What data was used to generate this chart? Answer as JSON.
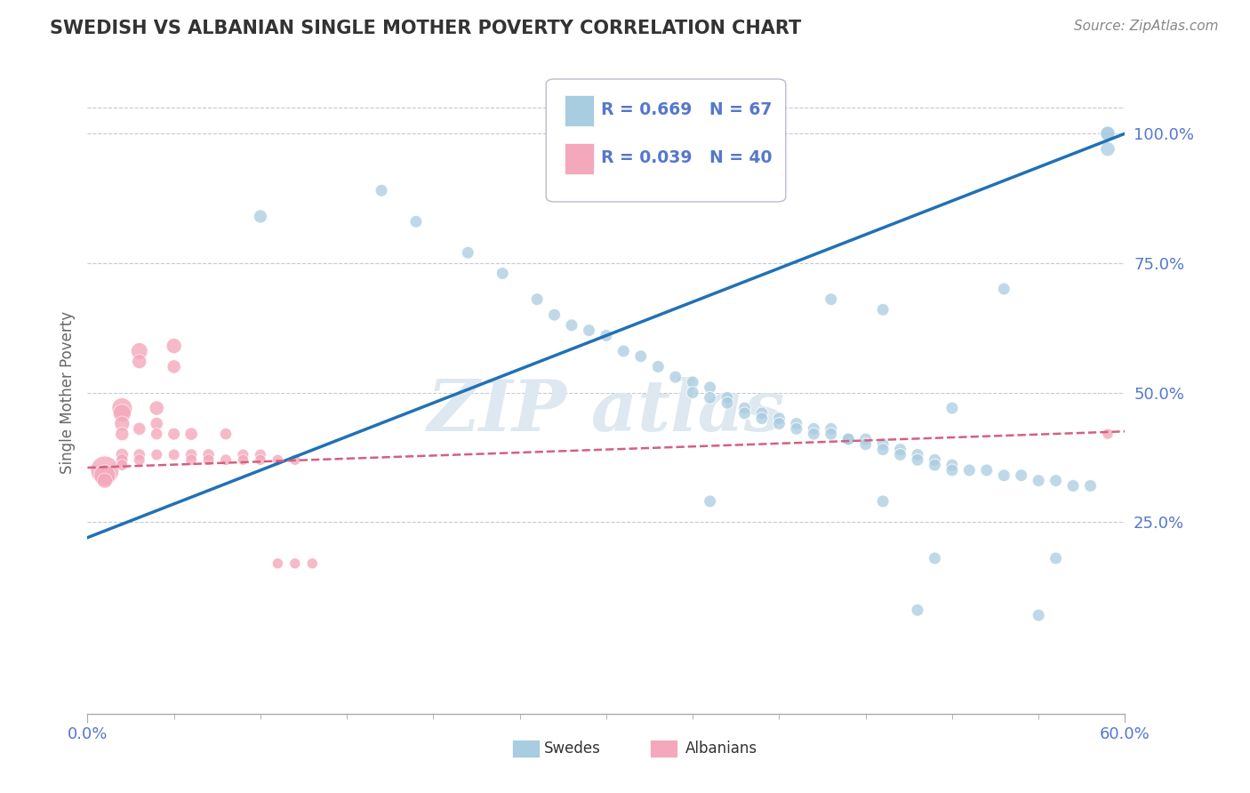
{
  "title": "SWEDISH VS ALBANIAN SINGLE MOTHER POVERTY CORRELATION CHART",
  "source": "Source: ZipAtlas.com",
  "ylabel": "Single Mother Poverty",
  "x_range": [
    0.0,
    0.6
  ],
  "y_range": [
    -0.12,
    1.12
  ],
  "swedes_R": 0.669,
  "swedes_N": 67,
  "albanians_R": 0.039,
  "albanians_N": 40,
  "swedes_color": "#a8cce0",
  "albanians_color": "#f4a8bb",
  "swedes_line_color": "#2171b5",
  "albanians_line_color": "#d46080",
  "background_color": "#ffffff",
  "grid_color": "#c8c8d8",
  "title_color": "#333333",
  "axis_label_color": "#5577cc",
  "watermark_color": "#dde8f0",
  "swedes_line_y0": 0.22,
  "swedes_line_y1": 1.0,
  "albanians_line_y0": 0.355,
  "albanians_line_y1": 0.425,
  "swedes_x": [
    0.1,
    0.17,
    0.19,
    0.22,
    0.24,
    0.26,
    0.27,
    0.28,
    0.29,
    0.3,
    0.31,
    0.32,
    0.33,
    0.34,
    0.35,
    0.35,
    0.36,
    0.36,
    0.37,
    0.37,
    0.38,
    0.38,
    0.39,
    0.39,
    0.4,
    0.4,
    0.41,
    0.41,
    0.42,
    0.42,
    0.43,
    0.43,
    0.44,
    0.44,
    0.45,
    0.45,
    0.46,
    0.46,
    0.47,
    0.47,
    0.48,
    0.48,
    0.49,
    0.49,
    0.5,
    0.5,
    0.51,
    0.52,
    0.53,
    0.54,
    0.55,
    0.56,
    0.57,
    0.58,
    0.59,
    0.59,
    0.43,
    0.46,
    0.5,
    0.53,
    0.36,
    0.46,
    0.49,
    0.56,
    0.48,
    0.55,
    0.59
  ],
  "swedes_y": [
    0.84,
    0.89,
    0.83,
    0.77,
    0.73,
    0.68,
    0.65,
    0.63,
    0.62,
    0.61,
    0.58,
    0.57,
    0.55,
    0.53,
    0.52,
    0.5,
    0.51,
    0.49,
    0.49,
    0.48,
    0.47,
    0.46,
    0.46,
    0.45,
    0.45,
    0.44,
    0.44,
    0.43,
    0.43,
    0.42,
    0.43,
    0.42,
    0.41,
    0.41,
    0.41,
    0.4,
    0.4,
    0.39,
    0.39,
    0.38,
    0.38,
    0.37,
    0.37,
    0.36,
    0.36,
    0.35,
    0.35,
    0.35,
    0.34,
    0.34,
    0.33,
    0.33,
    0.32,
    0.32,
    1.0,
    0.97,
    0.68,
    0.66,
    0.47,
    0.7,
    0.29,
    0.29,
    0.18,
    0.18,
    0.08,
    0.07,
    1.0
  ],
  "swedes_size": [
    60,
    50,
    50,
    50,
    50,
    50,
    50,
    50,
    50,
    50,
    50,
    50,
    50,
    50,
    50,
    50,
    50,
    50,
    50,
    50,
    50,
    50,
    50,
    50,
    50,
    50,
    50,
    50,
    50,
    50,
    50,
    50,
    50,
    50,
    50,
    50,
    50,
    50,
    50,
    50,
    50,
    50,
    50,
    50,
    50,
    50,
    50,
    50,
    50,
    50,
    50,
    50,
    50,
    50,
    70,
    70,
    50,
    50,
    50,
    50,
    50,
    50,
    50,
    50,
    50,
    50,
    70
  ],
  "albanians_x": [
    0.01,
    0.01,
    0.01,
    0.02,
    0.02,
    0.02,
    0.02,
    0.02,
    0.02,
    0.02,
    0.03,
    0.03,
    0.03,
    0.03,
    0.03,
    0.04,
    0.04,
    0.04,
    0.04,
    0.05,
    0.05,
    0.05,
    0.05,
    0.06,
    0.06,
    0.06,
    0.07,
    0.07,
    0.08,
    0.08,
    0.09,
    0.09,
    0.1,
    0.1,
    0.11,
    0.11,
    0.12,
    0.12,
    0.13,
    0.59
  ],
  "albanians_y": [
    0.35,
    0.34,
    0.33,
    0.47,
    0.46,
    0.44,
    0.42,
    0.38,
    0.37,
    0.36,
    0.58,
    0.56,
    0.43,
    0.38,
    0.37,
    0.47,
    0.44,
    0.42,
    0.38,
    0.59,
    0.55,
    0.42,
    0.38,
    0.42,
    0.38,
    0.37,
    0.38,
    0.37,
    0.42,
    0.37,
    0.38,
    0.37,
    0.38,
    0.37,
    0.37,
    0.17,
    0.37,
    0.17,
    0.17,
    0.42
  ],
  "albanians_size": [
    350,
    200,
    100,
    180,
    140,
    100,
    80,
    70,
    60,
    55,
    120,
    90,
    70,
    60,
    55,
    90,
    70,
    60,
    55,
    100,
    80,
    65,
    55,
    70,
    60,
    55,
    60,
    55,
    60,
    55,
    55,
    50,
    55,
    50,
    50,
    50,
    50,
    50,
    50,
    50
  ]
}
